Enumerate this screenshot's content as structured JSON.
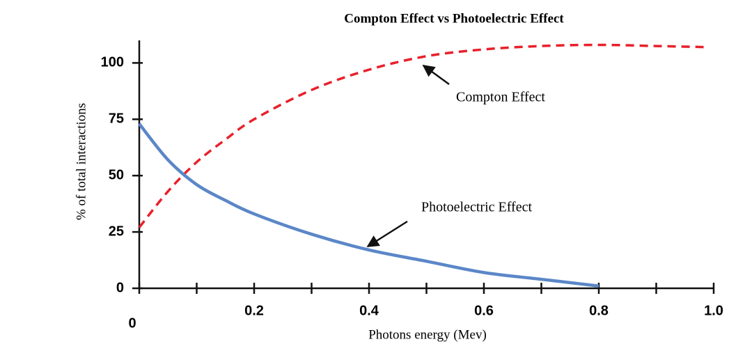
{
  "chart_data": {
    "type": "line",
    "title": "Compton Effect vs Photoelectric Effect",
    "x_label": "Photons energy (Mev)",
    "y_label": "% of total interactions",
    "x": [
      0,
      0.05,
      0.1,
      0.15,
      0.2,
      0.3,
      0.4,
      0.5,
      0.6,
      0.7,
      0.8,
      0.9,
      0.99
    ],
    "series": [
      {
        "name": "Compton Effect",
        "color": "#e8202a",
        "dashed": true,
        "values": [
          27,
          43,
          56,
          66,
          75,
          88,
          97,
          103,
          106,
          107.5,
          108,
          107.5,
          107
        ]
      },
      {
        "name": "Photoelectric Effect",
        "color": "#5b87c8",
        "dashed": false,
        "values": [
          73,
          57,
          46,
          39,
          33,
          24,
          17,
          12,
          7,
          4,
          1,
          null,
          null
        ]
      }
    ],
    "xlim": [
      0,
      1.0
    ],
    "ylim": [
      0,
      110
    ],
    "xticks": [
      0,
      0.2,
      0.4,
      0.6,
      0.8,
      {
        "value": 1.0,
        "label": "1.0"
      }
    ],
    "xminor_ticks": [
      0.1,
      0.3,
      0.5,
      0.7,
      0.9
    ],
    "yticks": [
      0,
      25,
      50,
      75,
      100
    ],
    "grid": false
  }
}
